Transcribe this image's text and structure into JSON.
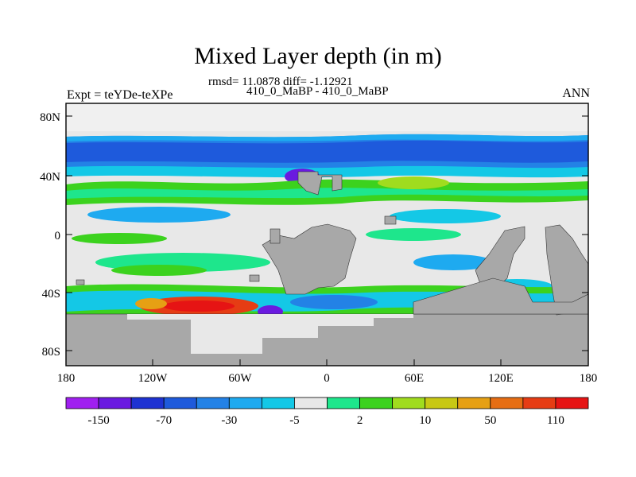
{
  "title": "Mixed Layer depth (in m)",
  "stats_line": "rmsd= 11.0878 diff= -1.12921",
  "case_line": "410_0_MaBP - 410_0_MaBP",
  "experiment_label": "Expt = teYDe-teXPe",
  "season_label": "ANN",
  "lat_ticks": [
    "80N",
    "40N",
    "0",
    "40S",
    "80S"
  ],
  "lon_ticks": [
    "180",
    "120W",
    "60W",
    "0",
    "60E",
    "120E",
    "180"
  ],
  "colorbar": {
    "colors": [
      "#a020f0",
      "#6a1ae0",
      "#1e32d2",
      "#1e5adc",
      "#2382e6",
      "#1eaaf0",
      "#14c8e6",
      "#e8e8e8",
      "#1ee68c",
      "#3cd21e",
      "#a0dc1e",
      "#c8c814",
      "#e6a014",
      "#e66e14",
      "#e63c14",
      "#e61414"
    ],
    "labels": [
      "-150",
      "-70",
      "-30",
      "-5",
      "2",
      "10",
      "50",
      "110"
    ]
  },
  "legend_colors": {
    "land": "#a8a8a8",
    "neutral": "#e8e8e8"
  }
}
